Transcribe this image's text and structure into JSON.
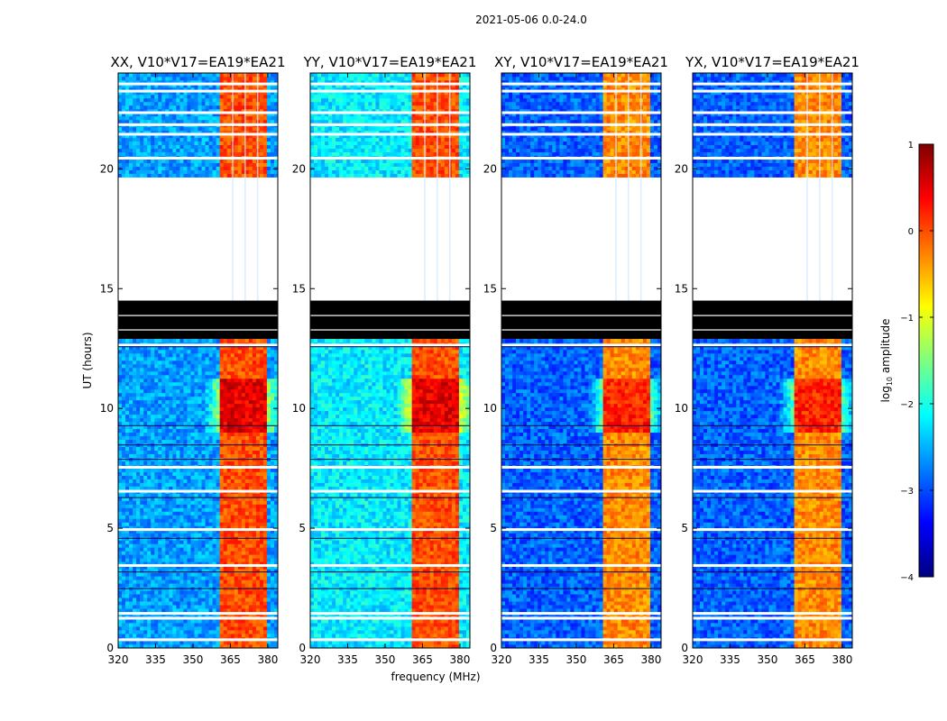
{
  "figure": {
    "suptitle": "2021-05-06 0.0-24.0",
    "colorbar": {
      "label_prefix": "log",
      "label_sub": "10",
      "label_suffix": " amplitude",
      "min": -4,
      "max": 1,
      "ticks": [
        "1",
        "0",
        "−1",
        "−2",
        "−3",
        "−4"
      ],
      "tick_values": [
        1,
        0,
        -1,
        -2,
        -3,
        -4
      ],
      "colormap": [
        "#00007f",
        "#0000ff",
        "#007fff",
        "#00ffff",
        "#7fff7f",
        "#ffff00",
        "#ff7f00",
        "#ff0000",
        "#7f0000"
      ]
    }
  },
  "chart_data": [
    {
      "type": "heatmap",
      "title": "XX, V10*V17=EA19*EA21",
      "ylabel": "UT (hours)",
      "xlabel": "",
      "xlim": [
        320,
        384
      ],
      "ylim": [
        0,
        24
      ],
      "xticks": [
        320,
        335,
        350,
        365,
        380
      ],
      "yticks": [
        0,
        5,
        10,
        15,
        20
      ],
      "xtick_labels": [
        "320",
        "335",
        "350",
        "365",
        "380"
      ],
      "ytick_labels": [
        "0",
        "5",
        "10",
        "15",
        "20"
      ],
      "background_level": -2.6,
      "strong_band_mhz": [
        360.5,
        380
      ],
      "strong_band_level": 0.0,
      "peak_hours": [
        9,
        11.2
      ],
      "flagged_black_hours": [
        12.9,
        14.5
      ],
      "empty_hours": [
        14.5,
        19.6
      ]
    },
    {
      "type": "heatmap",
      "title": "YY, V10*V17=EA19*EA21",
      "xlabel": "frequency (MHz)",
      "xlim": [
        320,
        384
      ],
      "ylim": [
        0,
        24
      ],
      "xticks": [
        320,
        335,
        350,
        365,
        380
      ],
      "yticks": [
        0,
        5,
        10,
        15,
        20
      ],
      "xtick_labels": [
        "320",
        "335",
        "350",
        "365",
        "380"
      ],
      "ytick_labels": [
        "0",
        "5",
        "10",
        "15",
        "20"
      ],
      "background_level": -2.2,
      "strong_band_mhz": [
        360.5,
        380
      ],
      "strong_band_level": 0.0,
      "peak_hours": [
        9,
        11.2
      ],
      "flagged_black_hours": [
        12.9,
        14.5
      ],
      "empty_hours": [
        14.5,
        19.6
      ]
    },
    {
      "type": "heatmap",
      "title": "XY, V10*V17=EA19*EA21",
      "xlabel": "",
      "xlim": [
        320,
        384
      ],
      "ylim": [
        0,
        24
      ],
      "xticks": [
        320,
        335,
        350,
        365,
        380
      ],
      "yticks": [
        0,
        5,
        10,
        15,
        20
      ],
      "xtick_labels": [
        "320",
        "335",
        "350",
        "365",
        "380"
      ],
      "ytick_labels": [
        "0",
        "5",
        "10",
        "15",
        "20"
      ],
      "background_level": -2.9,
      "strong_band_mhz": [
        360.5,
        380
      ],
      "strong_band_level": -0.3,
      "peak_hours": [
        9,
        11.2
      ],
      "flagged_black_hours": [
        12.9,
        14.5
      ],
      "empty_hours": [
        14.5,
        19.6
      ]
    },
    {
      "type": "heatmap",
      "title": "YX, V10*V17=EA19*EA21",
      "xlabel": "",
      "xlim": [
        320,
        384
      ],
      "ylim": [
        0,
        24
      ],
      "xticks": [
        320,
        335,
        350,
        365,
        380
      ],
      "yticks": [
        0,
        5,
        10,
        15,
        20
      ],
      "xtick_labels": [
        "320",
        "335",
        "350",
        "365",
        "380"
      ],
      "ytick_labels": [
        "0",
        "5",
        "10",
        "15",
        "20"
      ],
      "background_level": -2.9,
      "strong_band_mhz": [
        360.5,
        380
      ],
      "strong_band_level": -0.3,
      "peak_hours": [
        9,
        11.2
      ],
      "flagged_black_hours": [
        12.9,
        14.5
      ],
      "empty_hours": [
        14.5,
        19.6
      ]
    }
  ]
}
